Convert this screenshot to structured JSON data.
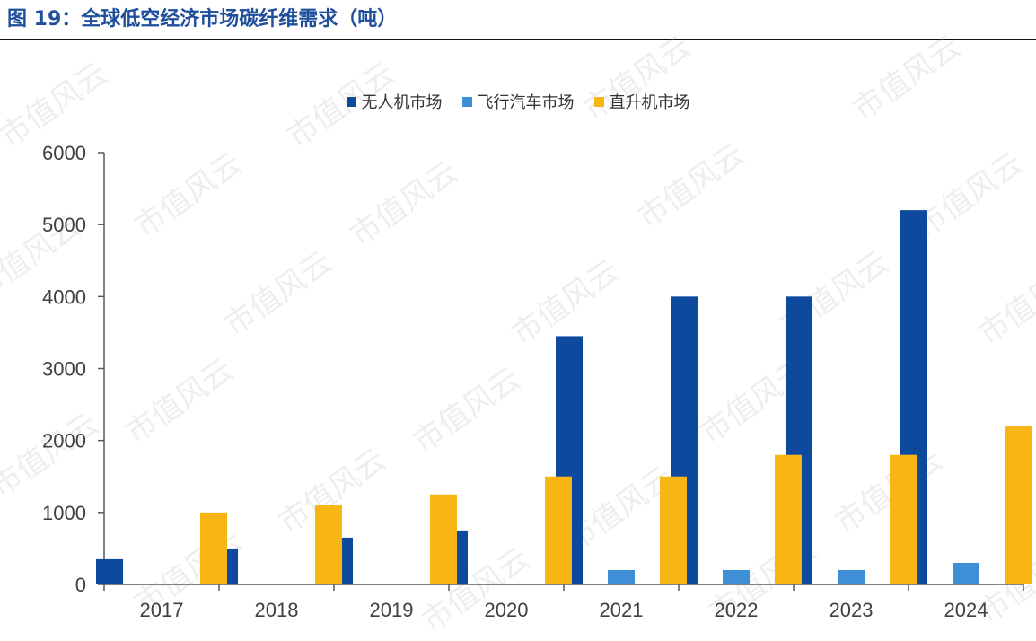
{
  "header": {
    "title": "图 19：全球低空经济市场碳纤维需求（吨）"
  },
  "watermark_text": "市值风云",
  "chart_data": {
    "type": "bar",
    "title": "全球低空经济市场碳纤维需求（吨）",
    "categories": [
      "2017",
      "2018",
      "2019",
      "2020",
      "2021",
      "2022",
      "2023",
      "2024"
    ],
    "series": [
      {
        "name": "无人机市场",
        "color": "#0d4a9e",
        "values": [
          350,
          500,
          650,
          750,
          3450,
          4000,
          4000,
          5200
        ]
      },
      {
        "name": "飞行汽车市场",
        "color": "#3f8fd6",
        "values": [
          0,
          0,
          0,
          0,
          200,
          200,
          200,
          300
        ]
      },
      {
        "name": "直升机市场",
        "color": "#f7b614",
        "values": [
          1000,
          1100,
          1250,
          1500,
          1500,
          1800,
          1800,
          2200
        ]
      }
    ],
    "ylim": [
      0,
      6000
    ],
    "yticks": [
      0,
      1000,
      2000,
      3000,
      4000,
      5000,
      6000
    ],
    "grid": false,
    "legend_position": "top-center",
    "xlabel": "",
    "ylabel": ""
  }
}
